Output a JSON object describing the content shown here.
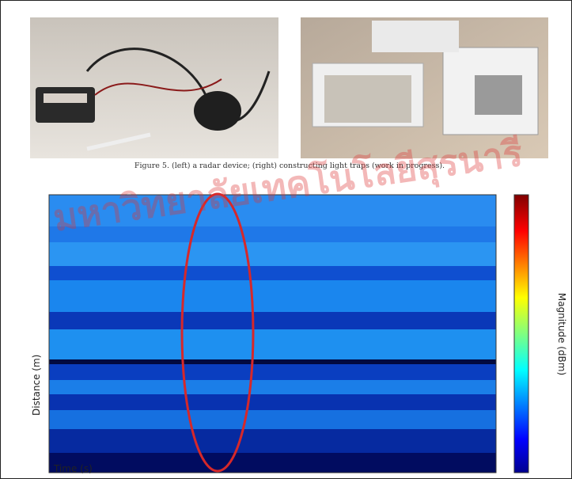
{
  "figure": {
    "caption": "Figure 5. (left) a radar device; (right) constructing light traps (work in progress)."
  },
  "spectrogram": {
    "x_label": "Time (s)",
    "y_label": "Distance (m)",
    "colorbar_label": "Magnitude (dBm)"
  },
  "watermark": "มหาวิทยาลัยเทคโนโลยีสุรนารี"
}
